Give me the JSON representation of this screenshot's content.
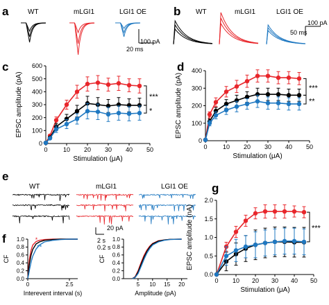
{
  "panels": {
    "a": {
      "letter": "a",
      "labels": [
        "WT",
        "mLGI1",
        "LGI1 OE"
      ],
      "scale_y": "100 pA",
      "scale_x": "20 ms"
    },
    "b": {
      "letter": "b",
      "labels": [
        "WT",
        "mLGI1",
        "LGI1 OE"
      ],
      "scale_y": "100 pA",
      "scale_x": "50 ms"
    },
    "e": {
      "letter": "e",
      "labels": [
        "WT",
        "mLGI1",
        "LGI1 OE"
      ],
      "scale_y": "20 pA",
      "scale_x1": "2 s",
      "scale_x2": "0.2 s"
    },
    "f": {
      "letter": "f"
    }
  },
  "colors": {
    "WT": "#000000",
    "mLGI1": "#e8262b",
    "LGI1 OE": "#1f78c1"
  },
  "chart_data": [
    {
      "id": "c",
      "letter": "c",
      "type": "line",
      "xlabel": "Stimulation (μA)",
      "ylabel": "EPSC amplitude (pA)",
      "xlim": [
        0,
        50
      ],
      "ylim": [
        0,
        600
      ],
      "xticks": [
        0,
        10,
        20,
        30,
        40,
        50
      ],
      "yticks": [
        0,
        100,
        200,
        300,
        400,
        500,
        600
      ],
      "x": [
        0,
        2,
        5,
        10,
        15,
        20,
        25,
        30,
        35,
        40,
        45
      ],
      "series": [
        {
          "key": "mLGI1",
          "values": [
            5,
            60,
            180,
            300,
            400,
            460,
            470,
            455,
            465,
            450,
            445
          ],
          "err": [
            0,
            10,
            25,
            35,
            50,
            55,
            55,
            50,
            55,
            50,
            55
          ]
        },
        {
          "key": "WT",
          "values": [
            5,
            45,
            130,
            190,
            250,
            310,
            300,
            290,
            300,
            295,
            295
          ],
          "err": [
            0,
            10,
            25,
            35,
            45,
            55,
            55,
            50,
            55,
            50,
            55
          ]
        },
        {
          "key": "LGI1 OE",
          "values": [
            5,
            40,
            110,
            150,
            190,
            250,
            245,
            225,
            235,
            230,
            235
          ],
          "err": [
            0,
            10,
            25,
            35,
            40,
            60,
            60,
            55,
            55,
            55,
            55
          ]
        }
      ],
      "annotations": [
        "***",
        "*"
      ]
    },
    {
      "id": "d",
      "letter": "d",
      "type": "line",
      "xlabel": "Stimulation (μA)",
      "ylabel": "EPSC amplitude (pA)",
      "xlim": [
        0,
        50
      ],
      "ylim": [
        0,
        400
      ],
      "xticks": [
        0,
        10,
        20,
        30,
        40,
        50
      ],
      "yticks": [
        0,
        100,
        200,
        300,
        400
      ],
      "x": [
        0,
        2,
        5,
        10,
        15,
        20,
        25,
        30,
        35,
        40,
        45
      ],
      "series": [
        {
          "key": "mLGI1",
          "values": [
            5,
            150,
            220,
            280,
            310,
            340,
            370,
            370,
            360,
            360,
            355
          ],
          "err": [
            0,
            15,
            25,
            30,
            35,
            35,
            35,
            35,
            35,
            35,
            35
          ]
        },
        {
          "key": "WT",
          "values": [
            5,
            110,
            170,
            210,
            230,
            250,
            265,
            265,
            265,
            260,
            260
          ],
          "err": [
            0,
            15,
            20,
            25,
            30,
            30,
            35,
            35,
            35,
            35,
            35
          ]
        },
        {
          "key": "LGI1 OE",
          "values": [
            5,
            100,
            145,
            175,
            195,
            210,
            225,
            215,
            215,
            210,
            210
          ],
          "err": [
            0,
            15,
            20,
            25,
            30,
            30,
            35,
            35,
            35,
            35,
            35
          ]
        }
      ],
      "annotations": [
        "***",
        "**"
      ]
    },
    {
      "id": "f1",
      "letter": "",
      "type": "line",
      "xlabel": "Interevent interval (s)",
      "ylabel": "CF",
      "xlim": [
        0,
        3
      ],
      "ylim": [
        0,
        1.0
      ],
      "xticks": [
        0,
        2.5
      ],
      "yticks": [
        0,
        0.2,
        0.4,
        0.6,
        0.8,
        1.0
      ],
      "x": [
        0,
        0.05,
        0.1,
        0.2,
        0.3,
        0.5,
        0.7,
        1.0,
        1.5,
        2.0,
        2.5,
        3.0
      ],
      "series": [
        {
          "key": "mLGI1",
          "values": [
            0,
            0.3,
            0.5,
            0.72,
            0.85,
            0.94,
            0.97,
            0.99,
            1.0,
            1.0,
            1.0,
            1.0
          ]
        },
        {
          "key": "WT",
          "values": [
            0,
            0.2,
            0.38,
            0.6,
            0.74,
            0.88,
            0.93,
            0.97,
            0.99,
            1.0,
            1.0,
            1.0
          ]
        },
        {
          "key": "LGI1 OE",
          "values": [
            0,
            0.1,
            0.22,
            0.42,
            0.57,
            0.75,
            0.85,
            0.93,
            0.97,
            0.99,
            1.0,
            1.0
          ]
        }
      ],
      "annotations": [
        "*",
        "**"
      ]
    },
    {
      "id": "f2",
      "letter": "",
      "type": "line",
      "xlabel": "Amplitude (pA)",
      "ylabel": "CF",
      "xlim": [
        0,
        22
      ],
      "ylim": [
        0,
        1.0
      ],
      "xticks": [
        5,
        10,
        15,
        20
      ],
      "yticks": [
        0,
        0.2,
        0.4,
        0.6,
        0.8,
        1.0
      ],
      "x": [
        3,
        4,
        5,
        6,
        7,
        8,
        9,
        10,
        12,
        14,
        16,
        20
      ],
      "series": [
        {
          "key": "mLGI1",
          "values": [
            0,
            0.05,
            0.2,
            0.4,
            0.58,
            0.72,
            0.82,
            0.89,
            0.96,
            0.98,
            0.995,
            1.0
          ]
        },
        {
          "key": "WT",
          "values": [
            0,
            0.04,
            0.17,
            0.36,
            0.54,
            0.69,
            0.8,
            0.88,
            0.95,
            0.98,
            0.995,
            1.0
          ]
        },
        {
          "key": "LGI1 OE",
          "values": [
            0,
            0.03,
            0.13,
            0.3,
            0.48,
            0.64,
            0.76,
            0.85,
            0.93,
            0.97,
            0.99,
            1.0
          ]
        }
      ],
      "annotations": []
    },
    {
      "id": "g",
      "letter": "g",
      "type": "line",
      "xlabel": "Stimulation (μA)",
      "ylabel": "EPSC amplitude (nA)",
      "xlim": [
        0,
        50
      ],
      "ylim": [
        0,
        2.0
      ],
      "xticks": [
        0,
        10,
        20,
        30,
        40,
        50
      ],
      "yticks": [
        0.0,
        0.5,
        1.0,
        1.5,
        2.0
      ],
      "x": [
        0,
        5,
        10,
        15,
        20,
        25,
        30,
        35,
        40,
        45
      ],
      "series": [
        {
          "key": "mLGI1",
          "values": [
            0,
            0.75,
            1.15,
            1.45,
            1.65,
            1.7,
            1.7,
            1.7,
            1.7,
            1.68
          ],
          "err": [
            0,
            0.12,
            0.15,
            0.15,
            0.15,
            0.18,
            0.18,
            0.18,
            0.15,
            0.15
          ]
        },
        {
          "key": "WT",
          "values": [
            0,
            0.35,
            0.55,
            0.7,
            0.8,
            0.85,
            0.88,
            0.88,
            0.87,
            0.87
          ],
          "err": [
            0,
            0.25,
            0.3,
            0.35,
            0.4,
            0.4,
            0.4,
            0.4,
            0.4,
            0.4
          ]
        },
        {
          "key": "LGI1 OE",
          "values": [
            0,
            0.5,
            0.65,
            0.75,
            0.8,
            0.85,
            0.88,
            0.9,
            0.9,
            0.88
          ],
          "err": [
            0,
            0.25,
            0.3,
            0.3,
            0.35,
            0.35,
            0.35,
            0.35,
            0.35,
            0.35
          ]
        }
      ],
      "annotations": [
        "***"
      ]
    }
  ]
}
